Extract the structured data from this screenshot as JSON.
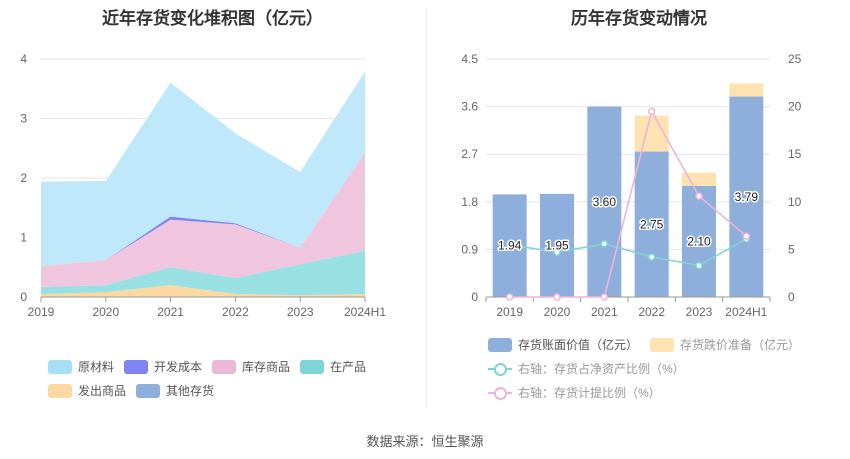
{
  "footer": {
    "source": "数据来源：恒生聚源"
  },
  "chart_data": [
    {
      "type": "area",
      "stacked": true,
      "title": "近年存货变化堆积图（亿元）",
      "categories": [
        "2019",
        "2020",
        "2021",
        "2022",
        "2023",
        "2024H1"
      ],
      "ylim": [
        0,
        4
      ],
      "yticks": [
        0,
        1,
        2,
        3,
        4
      ],
      "series": [
        {
          "name": "发出商品",
          "color": "#fcd9a0",
          "values": [
            0.05,
            0.08,
            0.2,
            0.05,
            0.03,
            0.05
          ]
        },
        {
          "name": "在产品",
          "color": "#98e0e2",
          "values": [
            0.12,
            0.12,
            0.3,
            0.27,
            0.52,
            0.73
          ]
        },
        {
          "name": "库存商品",
          "color": "#f0c6de",
          "values": [
            0.35,
            0.42,
            0.8,
            0.9,
            0.28,
            1.65
          ]
        },
        {
          "name": "开发成本",
          "color": "#7f84f0",
          "values": [
            0.0,
            0.0,
            0.05,
            0.02,
            0.0,
            0.0
          ]
        },
        {
          "name": "原材料",
          "color": "#bfe8fb",
          "values": [
            1.42,
            1.33,
            2.25,
            1.51,
            1.27,
            1.36
          ]
        },
        {
          "name": "其他存货",
          "color": "#8eaedc",
          "values": [
            0.0,
            0.0,
            0.0,
            0.0,
            0.0,
            0.0
          ]
        }
      ],
      "legend": {
        "position": "bottom",
        "items": [
          {
            "name": "原材料",
            "color": "#a8ddf6"
          },
          {
            "name": "开发成本",
            "color": "#7f84f0"
          },
          {
            "name": "库存商品",
            "color": "#ecb8d8"
          },
          {
            "name": "在产品",
            "color": "#7fd4d6"
          },
          {
            "name": "发出商品",
            "color": "#fcd9a0"
          },
          {
            "name": "其他存货",
            "color": "#8eaedc"
          }
        ]
      }
    },
    {
      "type": "bar",
      "title": "历年存货变动情况",
      "categories": [
        "2019",
        "2020",
        "2021",
        "2022",
        "2023",
        "2024H1"
      ],
      "ylim": [
        0,
        4.5
      ],
      "yticks": [
        "0",
        "0.9",
        "1.8",
        "2.7",
        "3.6",
        "4.5"
      ],
      "y2lim": [
        0,
        25
      ],
      "y2ticks": [
        "0",
        "5",
        "10",
        "15",
        "20",
        "25"
      ],
      "bars": {
        "book_value": {
          "name": "存货账面价值（亿元）",
          "color": "#8eaedc",
          "values": [
            1.94,
            1.95,
            3.6,
            2.75,
            2.1,
            3.79
          ]
        },
        "impairment": {
          "name": "存货跌价准备（亿元）",
          "color": "#fde2b2",
          "values": [
            0.0,
            0.0,
            0.0,
            0.68,
            0.25,
            0.25
          ]
        }
      },
      "bar_labels": [
        "1.94",
        "1.95",
        "3.60",
        "2.75",
        "2.10",
        "3.79"
      ],
      "lines": [
        {
          "name": "右轴：存货占净资产比例（%）",
          "color": "#7fd4d6",
          "values": [
            5.5,
            4.7,
            5.6,
            4.2,
            3.3,
            6.1
          ]
        },
        {
          "name": "右轴：存货计提比例（%）",
          "color": "#f0b4d8",
          "values": [
            0.0,
            0.0,
            0.0,
            19.5,
            10.6,
            6.4
          ]
        }
      ]
    }
  ]
}
